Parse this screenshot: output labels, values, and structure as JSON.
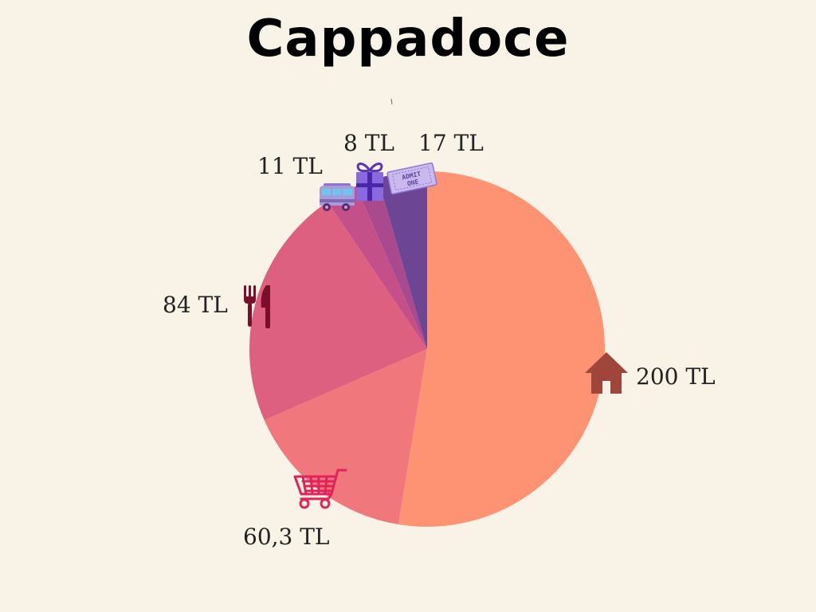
{
  "title": "Cappadoce",
  "chart_data": {
    "type": "pie",
    "title": "Cappadoce",
    "categories": [
      "house",
      "cart",
      "food",
      "van",
      "gift",
      "ticket"
    ],
    "values": [
      200,
      60.3,
      84,
      11,
      8,
      17
    ],
    "labels": [
      "200 TL",
      "60,3 TL",
      "84 TL",
      "11 TL",
      "8 TL",
      "17 TL"
    ],
    "colors": [
      "#fe9373",
      "#f0777b",
      "#dd6080",
      "#c45089",
      "#a94a8f",
      "#6c4595"
    ],
    "icons": [
      "house-icon",
      "shopping-cart-icon",
      "fork-knife-icon",
      "van-icon",
      "gift-icon",
      "ticket-icon"
    ],
    "ticket_text": [
      "ADMIT",
      "ONE"
    ]
  },
  "colors": {
    "background": "#f8f2e7",
    "house_icon": "#a0453a",
    "cart_icon": "#e0245a",
    "cutlery_icon": "#7b0f2b",
    "gift_icon": "#7a55d8",
    "ticket_icon": "#c9b9ee"
  }
}
